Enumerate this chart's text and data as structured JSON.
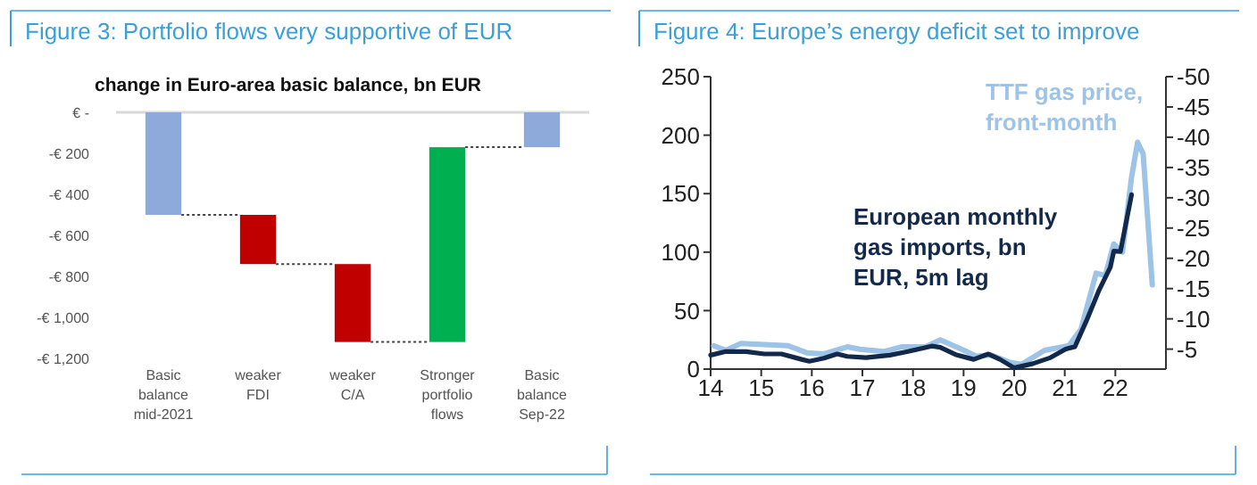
{
  "chart_data": [
    {
      "type": "bar",
      "title": "Figure 3: Portfolio flows very supportive of EUR",
      "subtitle": "change in Euro-area basic balance, bn EUR",
      "categories": [
        "Basic balance mid-2021",
        "weaker FDI",
        "weaker C/A",
        "Stronger portfolio flows",
        "Basic balance Sep-22"
      ],
      "values": [
        -500,
        -240,
        -380,
        950,
        -170
      ],
      "base": [
        0,
        -500,
        -740,
        -1120,
        0
      ],
      "colors": [
        "#8eaadb",
        "#c00000",
        "#c00000",
        "#00b050",
        "#8eaadb"
      ],
      "ylim": [
        -1200,
        0
      ],
      "yticks": [
        {
          "value": 0,
          "label": "€ -"
        },
        {
          "value": -200,
          "label": "-€ 200"
        },
        {
          "value": -400,
          "label": "-€ 400"
        },
        {
          "value": -600,
          "label": "-€ 600"
        },
        {
          "value": -800,
          "label": "-€ 800"
        },
        {
          "value": -1000,
          "label": "-€ 1,000"
        },
        {
          "value": -1200,
          "label": "-€ 1,200"
        }
      ],
      "grid": false
    },
    {
      "type": "line",
      "title": "Figure 4: Europe’s energy deficit set to improve",
      "xlim": [
        14,
        23
      ],
      "xticks": [
        {
          "value": 14,
          "label": "14"
        },
        {
          "value": 15,
          "label": "15"
        },
        {
          "value": 16,
          "label": "16"
        },
        {
          "value": 17,
          "label": "17"
        },
        {
          "value": 18,
          "label": "18"
        },
        {
          "value": 19,
          "label": "19"
        },
        {
          "value": 20,
          "label": "20"
        },
        {
          "value": 21,
          "label": "21"
        },
        {
          "value": 22,
          "label": "22"
        }
      ],
      "ylim": [
        0,
        250
      ],
      "yticks": [
        0,
        50,
        100,
        150,
        200,
        250
      ],
      "y2lim": [
        -1.7,
        -50
      ],
      "y2ticks": [
        -5,
        -10,
        -15,
        -20,
        -25,
        -30,
        -35,
        -40,
        -45,
        -50
      ],
      "grid": false,
      "marker": "none",
      "line_style": "solid",
      "series": [
        {
          "name": "TTF gas price, front-month",
          "color": "#9dc3e6",
          "x": [
            14.06,
            14.3,
            14.6,
            15.06,
            15.53,
            15.9,
            16.24,
            16.7,
            16.95,
            17.42,
            17.77,
            18.25,
            18.54,
            18.96,
            19.25,
            19.55,
            19.9,
            20.14,
            20.6,
            21.08,
            21.32,
            21.62,
            21.8,
            21.97,
            22.14,
            22.32,
            22.44,
            22.55,
            22.73
          ],
          "values": [
            20,
            16,
            22,
            21,
            20,
            14,
            13,
            19,
            17,
            15,
            19,
            19,
            25,
            17,
            11,
            12,
            6,
            4,
            16,
            20,
            34,
            82,
            80,
            107,
            100,
            164,
            194,
            184,
            72
          ]
        },
        {
          "name": "European monthly gas imports, bn EUR, 5m lag",
          "color": "#13294b",
          "axis": "y2",
          "x": [
            14.0,
            14.3,
            14.7,
            15.06,
            15.4,
            15.8,
            15.95,
            16.24,
            16.5,
            16.7,
            17.07,
            17.54,
            17.9,
            18.37,
            18.54,
            18.84,
            19.2,
            19.49,
            19.72,
            20.0,
            20.37,
            20.72,
            21.02,
            21.2,
            21.43,
            21.67,
            21.9,
            21.97,
            22.1,
            22.32
          ],
          "values": [
            -4.0,
            -4.6,
            -4.6,
            -4.2,
            -4.2,
            -3.3,
            -3.0,
            -3.5,
            -4.2,
            -3.8,
            -3.6,
            -4.0,
            -4.6,
            -5.5,
            -5.3,
            -4.1,
            -3.3,
            -4.2,
            -3.3,
            -1.9,
            -2.6,
            -3.6,
            -5.0,
            -5.4,
            -9.7,
            -14.6,
            -18.5,
            -21.2,
            -21.1,
            -30.5
          ]
        }
      ]
    }
  ]
}
